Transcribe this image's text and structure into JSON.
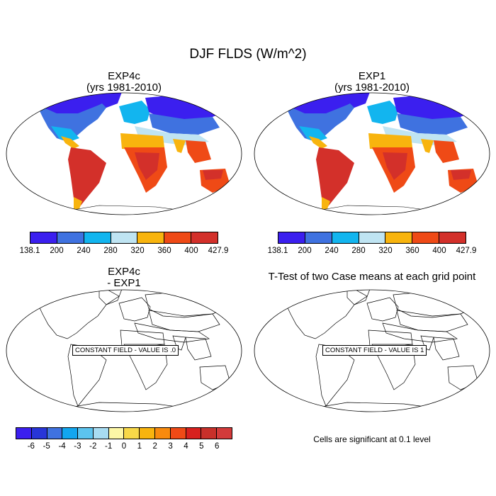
{
  "figure": {
    "title": "DJF FLDS (W/m^2)"
  },
  "chart_data": [
    {
      "type": "heatmap",
      "title": "EXP4c",
      "subtitle": "(yrs 1981-2010)",
      "colorbar": {
        "labels": [
          "138.1",
          "200",
          "240",
          "280",
          "320",
          "360",
          "400",
          "427.9"
        ],
        "colors": [
          "#3b1fef",
          "#3f72e0",
          "#12b5ef",
          "#bfe4f2",
          "#f8b40e",
          "#ef4a16",
          "#d3302a"
        ]
      }
    },
    {
      "type": "heatmap",
      "title": "EXP1",
      "subtitle": "(yrs 1981-2010)",
      "colorbar": {
        "labels": [
          "138.1",
          "200",
          "240",
          "280",
          "320",
          "360",
          "400",
          "427.9"
        ],
        "colors": [
          "#3b1fef",
          "#3f72e0",
          "#12b5ef",
          "#bfe4f2",
          "#f8b40e",
          "#ef4a16",
          "#d3302a"
        ]
      }
    },
    {
      "type": "heatmap",
      "title": "EXP4c",
      "subtitle": "- EXP1",
      "annotation": "CONSTANT FIELD - VALUE IS .0",
      "colorbar": {
        "labels": [
          "-6",
          "-5",
          "-4",
          "-3",
          "-2",
          "-1",
          "0",
          "1",
          "2",
          "3",
          "4",
          "5",
          "6"
        ],
        "colors": [
          "#3b1fef",
          "#2835d8",
          "#3f72e0",
          "#12a6ef",
          "#5cc4ef",
          "#a8dcf2",
          "#fdf7a6",
          "#f8d848",
          "#f8b40e",
          "#f88a0e",
          "#ef4a16",
          "#d8201e",
          "#c8302a",
          "#d33a3a"
        ]
      }
    },
    {
      "type": "heatmap",
      "title": "T-Test of two Case means at each grid point",
      "annotation": "CONSTANT FIELD - VALUE IS 1",
      "note": "Cells are significant at 0.1 level"
    }
  ]
}
